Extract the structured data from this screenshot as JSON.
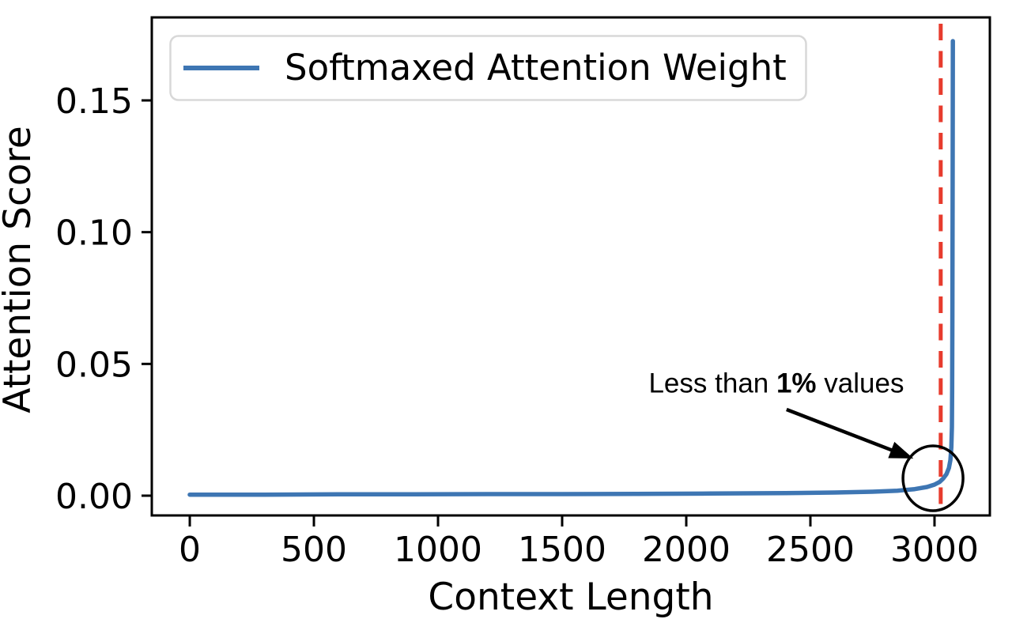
{
  "figure": {
    "background": "#ffffff"
  },
  "chart_data": {
    "type": "line",
    "title": "",
    "xlabel": "Context Length",
    "ylabel": "Attention Score",
    "xlim": [
      -153,
      3223
    ],
    "ylim": [
      -0.0075,
      0.1815
    ],
    "xticks": [
      0,
      500,
      1000,
      1500,
      2000,
      2500,
      3000
    ],
    "xtick_labels": [
      "0",
      "500",
      "1000",
      "1500",
      "2000",
      "2500",
      "3000"
    ],
    "yticks": [
      0,
      0.05,
      0.1,
      0.15
    ],
    "ytick_labels": [
      "0.00",
      "0.05",
      "0.10",
      "0.15"
    ],
    "grid": false,
    "legend": {
      "position": "upper-left",
      "label": "Softmaxed Attention Weight"
    },
    "series": [
      {
        "name": "Softmaxed Attention Weight",
        "color": "#3e76b3",
        "points": [
          [
            0,
            0.0004
          ],
          [
            300,
            0.0004
          ],
          [
            600,
            0.0005
          ],
          [
            900,
            0.0005
          ],
          [
            1200,
            0.0006
          ],
          [
            1500,
            0.0006
          ],
          [
            1800,
            0.0007
          ],
          [
            2100,
            0.0008
          ],
          [
            2400,
            0.001
          ],
          [
            2600,
            0.0012
          ],
          [
            2750,
            0.0015
          ],
          [
            2850,
            0.0019
          ],
          [
            2920,
            0.0025
          ],
          [
            2970,
            0.0033
          ],
          [
            3000,
            0.0042
          ],
          [
            3020,
            0.0052
          ],
          [
            3035,
            0.0065
          ],
          [
            3048,
            0.0082
          ],
          [
            3058,
            0.0105
          ],
          [
            3064,
            0.0135
          ],
          [
            3068,
            0.0185
          ],
          [
            3070,
            0.026
          ],
          [
            3071,
            0.04
          ],
          [
            3072,
            0.068
          ],
          [
            3073,
            0.115
          ],
          [
            3074,
            0.1725
          ]
        ]
      }
    ],
    "vline": {
      "x": 3025,
      "color": "#e73b2d",
      "style": "dashed"
    },
    "annotation": {
      "text_prefix": "Less than ",
      "text_bold": "1%",
      "text_suffix": " values",
      "text_pos": [
        2363,
        0.043
      ],
      "arrow_tail": [
        2404,
        0.0327
      ],
      "arrow_head": [
        2915,
        0.0141
      ],
      "circle_center": [
        2994,
        0.0066
      ],
      "circle_rx": 121,
      "circle_ry": 0.0123
    },
    "colors": {
      "line": "#3e76b3",
      "vline": "#e73b2d",
      "spine": "#000000",
      "annotation": "#000000",
      "legend_border": "#d8d8d8",
      "text": "#000000"
    }
  }
}
